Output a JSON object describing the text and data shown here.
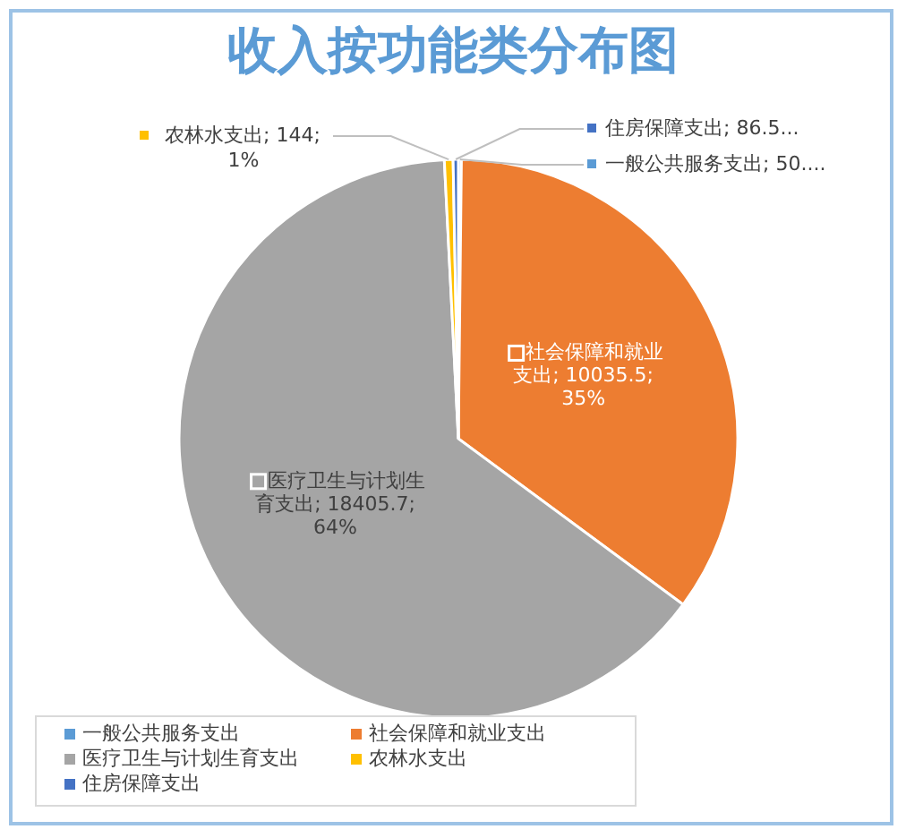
{
  "chart_data": {
    "type": "pie",
    "title": "收入按功能类分布图",
    "categories": [
      "一般公共服务支出",
      "社会保障和就业支出",
      "医疗卫生与计划生育支出",
      "农林水支出",
      "住房保障支出"
    ],
    "values": [
      50,
      10035.5,
      18405.7,
      144,
      86.5
    ],
    "colors": [
      "#5b9bd5",
      "#ed7d31",
      "#a5a5a5",
      "#ffc000",
      "#4472c4"
    ],
    "value_labels": [
      "一般公共服务支出; 50....",
      "社会保障和就业支出; 10035.5; 35%",
      "医疗卫生与计划生育支出; 18405.7; 64%",
      "农林水支出; 144; 1%",
      "住房保障支出; 86.5..."
    ],
    "legend": "bottom"
  }
}
